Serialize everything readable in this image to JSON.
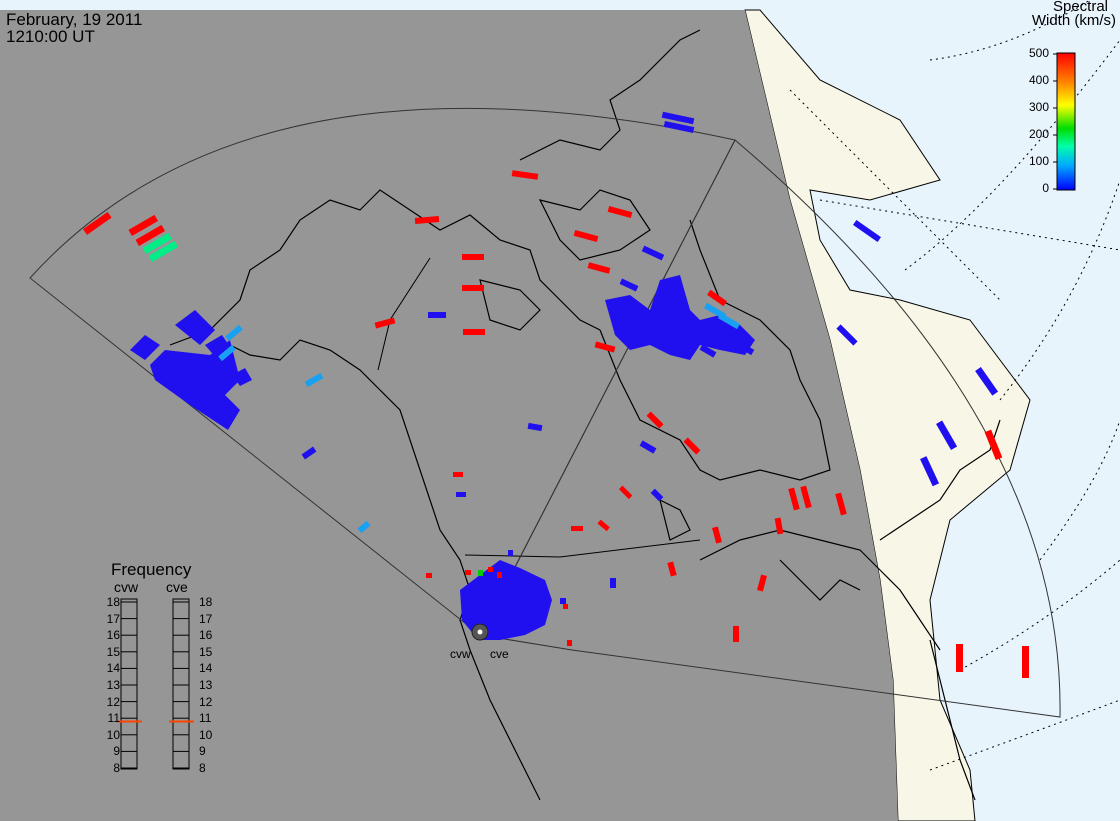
{
  "header": {
    "date": "February, 19 2011",
    "time": "1210:00 UT"
  },
  "colorbar": {
    "title_line1": "Spectral",
    "title_line2": "Width (km/s)",
    "ticks": [
      "500",
      "400",
      "300",
      "200",
      "100",
      "0"
    ],
    "range": [
      0,
      500
    ],
    "colors": [
      "#0000ff",
      "#00aaff",
      "#00ffaa",
      "#00dd00",
      "#ffff00",
      "#ff8800",
      "#ff0000"
    ]
  },
  "radars": {
    "west_label": "cvw",
    "east_label": "cve"
  },
  "frequency_panel": {
    "title": "Frequency",
    "west_label": "cvw",
    "east_label": "cve",
    "ticks": [
      "18",
      "17",
      "16",
      "15",
      "14",
      "13",
      "12",
      "11",
      "10",
      "9",
      "8"
    ],
    "cvw_mhz": 10.8,
    "cve_mhz": 10.8,
    "marker_color": "#ff4400"
  },
  "map_colors": {
    "night": "#969696",
    "day_land": "#f8f6e6",
    "day_ocean": "#e8f4fc",
    "coast": "#000000",
    "scatter_red": "#ff0000",
    "scatter_blue": "#2010f0",
    "scatter_cyan": "#1aa0f0"
  }
}
